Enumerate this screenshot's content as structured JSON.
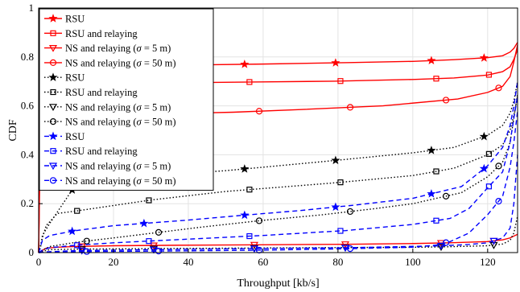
{
  "chart_data": {
    "type": "line",
    "title": "",
    "xlabel": "Throughput [kb/s]",
    "ylabel": "CDF",
    "xlim": [
      0,
      128
    ],
    "ylim": [
      0,
      1
    ],
    "xticks": [
      0,
      20,
      40,
      60,
      80,
      100,
      120
    ],
    "yticks": [
      0,
      0.2,
      0.4,
      0.6,
      0.8,
      1
    ],
    "grid": true,
    "legend_position": "top-left",
    "series": [
      {
        "name": "RSU",
        "color": "#ff0000",
        "dash": "solid",
        "marker": "star",
        "x": [
          0,
          0.5,
          1,
          5,
          20,
          40,
          60,
          83,
          100,
          111,
          120,
          124,
          126,
          127,
          128
        ],
        "y": [
          0,
          0.71,
          0.74,
          0.755,
          0.762,
          0.767,
          0.771,
          0.777,
          0.782,
          0.789,
          0.797,
          0.805,
          0.82,
          0.835,
          0.86
        ]
      },
      {
        "name": "RSU and relaying",
        "color": "#ff0000",
        "dash": "solid",
        "marker": "square",
        "x": [
          0,
          0.5,
          1,
          5,
          20,
          40,
          60,
          79,
          100,
          111,
          120,
          124,
          126,
          127,
          128
        ],
        "y": [
          0,
          0.66,
          0.68,
          0.69,
          0.692,
          0.695,
          0.698,
          0.701,
          0.708,
          0.714,
          0.726,
          0.74,
          0.76,
          0.79,
          0.83
        ]
      },
      {
        "name": "NS and relaying ($\\sigma$ = 5 m)",
        "color": "#ff0000",
        "dash": "solid",
        "marker": "triangle-down",
        "x": [
          0,
          2,
          5,
          10,
          20,
          37,
          60,
          82,
          100,
          110,
          120,
          124,
          126,
          128
        ],
        "y": [
          0,
          0.018,
          0.022,
          0.025,
          0.028,
          0.03,
          0.032,
          0.034,
          0.037,
          0.04,
          0.045,
          0.052,
          0.06,
          0.075
        ]
      },
      {
        "name": "NS and relaying ($\\sigma$ = 50 m)",
        "color": "#ff0000",
        "dash": "solid",
        "marker": "circle",
        "x": [
          0,
          0.5,
          1,
          5,
          20,
          35,
          52,
          70,
          92,
          112,
          120,
          124,
          126,
          127,
          128
        ],
        "y": [
          0,
          0.5,
          0.545,
          0.556,
          0.563,
          0.568,
          0.574,
          0.585,
          0.6,
          0.628,
          0.655,
          0.68,
          0.72,
          0.78,
          0.85
        ]
      },
      {
        "name": "RSU",
        "color": "#000000",
        "dash": "dotted",
        "marker": "star",
        "x": [
          0,
          0.5,
          1,
          3,
          10,
          30,
          50,
          76,
          100,
          111,
          120,
          124,
          126,
          127,
          128
        ],
        "y": [
          0,
          0.02,
          0.07,
          0.12,
          0.28,
          0.315,
          0.335,
          0.372,
          0.408,
          0.43,
          0.48,
          0.52,
          0.57,
          0.62,
          0.7
        ]
      },
      {
        "name": "RSU and relaying",
        "color": "#000000",
        "dash": "dotted",
        "marker": "square",
        "x": [
          0,
          1,
          2,
          5,
          10,
          30,
          50,
          79,
          100,
          111,
          120,
          124,
          126,
          127,
          128
        ],
        "y": [
          0,
          0.06,
          0.11,
          0.16,
          0.17,
          0.215,
          0.25,
          0.285,
          0.315,
          0.345,
          0.4,
          0.44,
          0.5,
          0.56,
          0.64
        ]
      },
      {
        "name": "NS and relaying ($\\sigma$ = 5 m)",
        "color": "#000000",
        "dash": "dotted",
        "marker": "triangle-down",
        "x": [
          0,
          1,
          3,
          10,
          28,
          50,
          75,
          102,
          110,
          120,
          124,
          126,
          127,
          128
        ],
        "y": [
          0,
          0.005,
          0.012,
          0.014,
          0.016,
          0.018,
          0.02,
          0.022,
          0.024,
          0.028,
          0.035,
          0.05,
          0.08,
          0.15
        ]
      },
      {
        "name": "NS and relaying ($\\sigma$ = 50 m)",
        "color": "#000000",
        "dash": "dotted",
        "marker": "circle",
        "x": [
          0,
          1,
          3,
          10,
          20,
          44,
          60,
          76,
          90,
          100,
          113,
          120,
          124,
          126,
          127,
          128
        ],
        "y": [
          0,
          0.01,
          0.025,
          0.042,
          0.06,
          0.105,
          0.132,
          0.155,
          0.18,
          0.2,
          0.245,
          0.31,
          0.37,
          0.45,
          0.55,
          0.65
        ]
      },
      {
        "name": "RSU",
        "color": "#0000ff",
        "dash": "dashed",
        "marker": "star",
        "x": [
          0,
          1,
          3,
          10,
          20,
          40,
          55,
          70,
          85,
          100,
          113,
          120,
          124,
          126,
          127,
          128
        ],
        "y": [
          0,
          0.05,
          0.07,
          0.09,
          0.11,
          0.133,
          0.153,
          0.172,
          0.195,
          0.222,
          0.27,
          0.355,
          0.43,
          0.52,
          0.6,
          0.7
        ]
      },
      {
        "name": "RSU and relaying",
        "color": "#0000ff",
        "dash": "dashed",
        "marker": "square",
        "x": [
          0,
          1,
          3,
          10,
          20,
          40,
          60,
          82,
          100,
          110,
          115,
          120,
          124,
          126,
          127,
          128
        ],
        "y": [
          0,
          0.01,
          0.02,
          0.03,
          0.04,
          0.055,
          0.07,
          0.09,
          0.115,
          0.14,
          0.18,
          0.265,
          0.33,
          0.45,
          0.55,
          0.64
        ]
      },
      {
        "name": "NS and relaying ($\\sigma$ = 5 m)",
        "color": "#0000ff",
        "dash": "dashed",
        "marker": "triangle-down",
        "x": [
          0,
          2,
          10,
          30,
          55,
          83,
          108,
          115,
          120,
          124,
          126,
          127,
          128
        ],
        "y": [
          0,
          0.003,
          0.008,
          0.012,
          0.016,
          0.02,
          0.028,
          0.033,
          0.04,
          0.06,
          0.1,
          0.2,
          0.4
        ]
      },
      {
        "name": "NS and relaying ($\\sigma$ = 50 m)",
        "color": "#0000ff",
        "dash": "dashed",
        "marker": "circle",
        "x": [
          0,
          3,
          10,
          30,
          60,
          80,
          100,
          106,
          110,
          115,
          120,
          124,
          126,
          127,
          128
        ],
        "y": [
          0,
          0.002,
          0.004,
          0.006,
          0.01,
          0.015,
          0.022,
          0.03,
          0.045,
          0.08,
          0.155,
          0.23,
          0.35,
          0.45,
          0.58
        ]
      }
    ]
  }
}
